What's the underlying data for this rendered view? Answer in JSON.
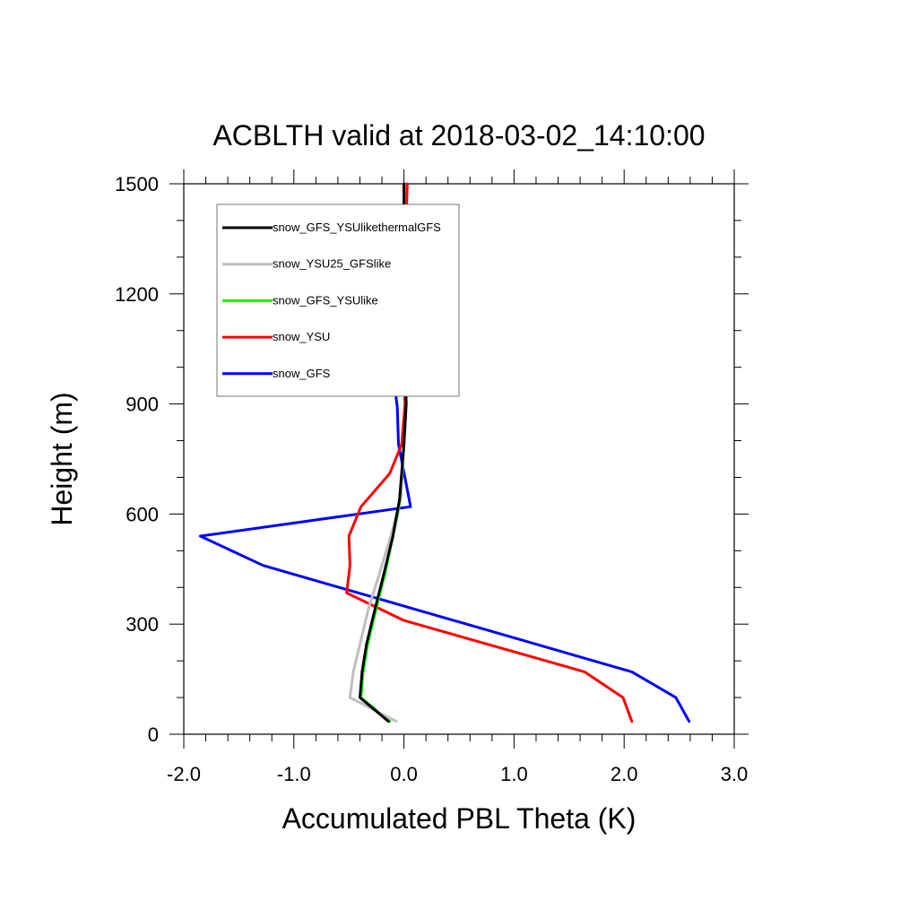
{
  "chart_data": {
    "type": "line",
    "title": "ACBLTH valid at 2018-03-02_14:10:00",
    "xlabel": "Accumulated PBL Theta (K)",
    "ylabel": "Height (m)",
    "xlim": [
      -2.0,
      3.0
    ],
    "ylim": [
      0,
      1500
    ],
    "xticks": [
      -2.0,
      -1.0,
      0.0,
      1.0,
      2.0,
      3.0
    ],
    "xtick_labels": [
      "-2.0",
      "-1.0",
      "0.0",
      "1.0",
      "2.0",
      "3.0"
    ],
    "yticks": [
      0,
      300,
      600,
      900,
      1200,
      1500
    ],
    "ytick_labels": [
      "0",
      "300",
      "600",
      "900",
      "1200",
      "1500"
    ],
    "grid": false,
    "legend_position": "top-left",
    "series": [
      {
        "name": "snow_GFS_YSUlikethermalGFS",
        "color": "#000000",
        "x": [
          -0.14,
          -0.4,
          -0.38,
          -0.34,
          -0.26,
          -0.18,
          -0.1,
          -0.04,
          0.0,
          0.02,
          0.01,
          0.0,
          0.0
        ],
        "y": [
          35,
          100,
          170,
          245,
          345,
          440,
          540,
          640,
          790,
          900,
          1050,
          1300,
          1500
        ]
      },
      {
        "name": "snow_YSU25_GFSlike",
        "color": "#bebebe",
        "x": [
          -0.07,
          -0.49,
          -0.46,
          -0.4,
          -0.32,
          -0.22,
          -0.12,
          -0.03,
          0.0,
          0.02,
          0.01,
          0.0,
          0.0
        ],
        "y": [
          35,
          100,
          170,
          245,
          345,
          440,
          540,
          640,
          790,
          900,
          1050,
          1300,
          1500
        ]
      },
      {
        "name": "snow_GFS_YSUlike",
        "color": "#00ff00",
        "x": [
          -0.13,
          -0.39,
          -0.37,
          -0.33,
          -0.25,
          -0.17,
          -0.1,
          -0.03,
          0.0,
          0.02,
          0.01,
          0.0,
          0.0
        ],
        "y": [
          35,
          100,
          170,
          245,
          345,
          440,
          540,
          640,
          790,
          900,
          1050,
          1300,
          1500
        ]
      },
      {
        "name": "snow_YSU",
        "color": "#ff0000",
        "x": [
          2.07,
          1.99,
          1.64,
          0.0,
          -0.52,
          -0.49,
          -0.5,
          -0.39,
          -0.13,
          -0.02,
          0.01,
          0.0,
          0.01,
          0.03
        ],
        "y": [
          35,
          100,
          170,
          310,
          385,
          460,
          540,
          620,
          710,
          790,
          900,
          1050,
          1300,
          1500
        ]
      },
      {
        "name": "snow_GFS",
        "color": "#0000ff",
        "x": [
          2.59,
          2.47,
          2.07,
          -1.28,
          -1.85,
          0.06,
          -0.05,
          -0.06,
          -0.1,
          -0.05,
          -0.01,
          0.0,
          0.0
        ],
        "y": [
          35,
          100,
          170,
          460,
          540,
          620,
          790,
          890,
          990,
          1080,
          1200,
          1300,
          1500
        ]
      }
    ]
  }
}
